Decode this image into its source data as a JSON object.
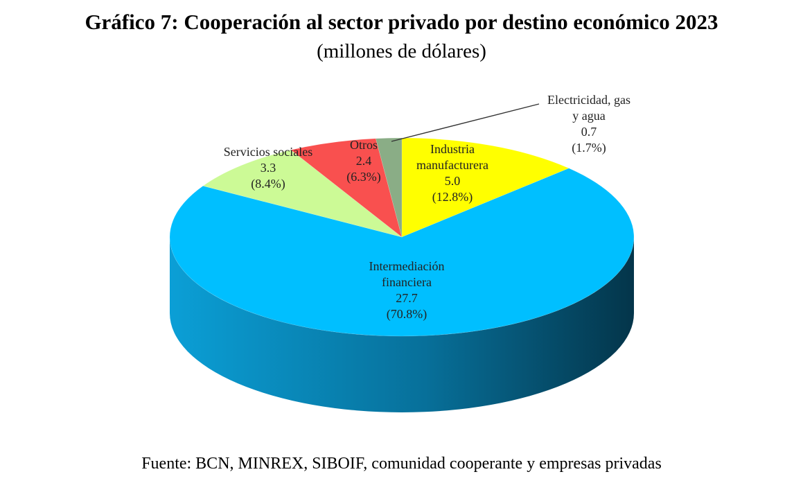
{
  "header": {
    "title": "Gráfico 7: Cooperación al sector privado por destino económico 2023",
    "subtitle": "(millones de dólares)"
  },
  "footer": {
    "source": "Fuente: BCN, MINREX, SIBOIF, comunidad cooperante y empresas privadas"
  },
  "chart_data": {
    "type": "pie",
    "style": "3d",
    "unit": "millones de dólares",
    "slices": [
      {
        "name": "Industria manufacturera",
        "label_lines": [
          "Industria",
          "manufacturera"
        ],
        "value": 5.0,
        "value_label": "5.0",
        "percent_label": "(12.8%)",
        "color": "#ffff00",
        "side_color": "#c8c800"
      },
      {
        "name": "Intermediación financiera",
        "label_lines": [
          "Intermediación",
          "financiera"
        ],
        "value": 27.7,
        "value_label": "27.7",
        "percent_label": "(70.8%)",
        "color": "#00bfff",
        "side_color": "#0a6f96"
      },
      {
        "name": "Servicios sociales",
        "label_lines": [
          "Servicios sociales"
        ],
        "value": 3.3,
        "value_label": "3.3",
        "percent_label": "(8.4%)",
        "color": "#ccfa96",
        "side_color": "#9ac872"
      },
      {
        "name": "Otros",
        "label_lines": [
          "Otros"
        ],
        "value": 2.4,
        "value_label": "2.4",
        "percent_label": "(6.3%)",
        "color": "#f9504f",
        "side_color": "#b83c3b"
      },
      {
        "name": "Electricidad, gas y agua",
        "label_lines": [
          "Electricidad, gas",
          "y agua"
        ],
        "value": 0.7,
        "value_label": "0.7",
        "percent_label": "(1.7%)",
        "color": "#8aad86",
        "side_color": "#6a8a66"
      }
    ]
  }
}
